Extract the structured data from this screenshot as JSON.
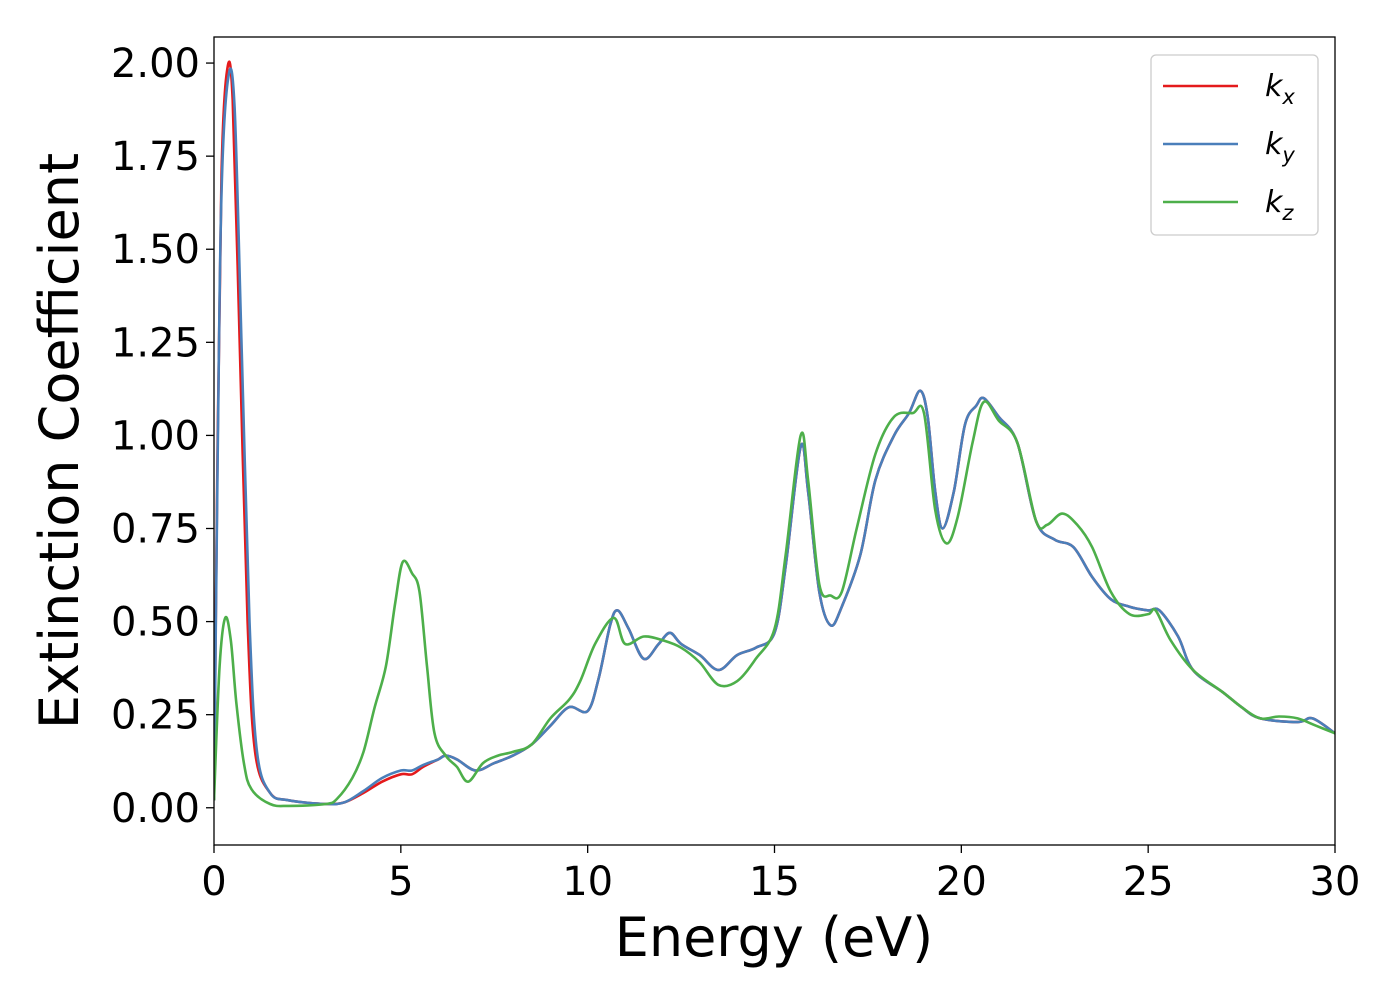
{
  "chart_data": {
    "type": "line",
    "title": "",
    "xlabel": "Energy (eV)",
    "ylabel": "Extinction Coefficient",
    "xlim": [
      0,
      30
    ],
    "ylim": [
      -0.1,
      2.07
    ],
    "x_ticks": [
      0,
      5,
      10,
      15,
      20,
      25,
      30
    ],
    "x_tick_labels": [
      "0",
      "5",
      "10",
      "15",
      "20",
      "25",
      "30"
    ],
    "y_ticks": [
      0.0,
      0.25,
      0.5,
      0.75,
      1.0,
      1.25,
      1.5,
      1.75,
      2.0
    ],
    "y_tick_labels": [
      "0.00",
      "0.25",
      "0.50",
      "0.75",
      "1.00",
      "1.25",
      "1.50",
      "1.75",
      "2.00"
    ],
    "grid": false,
    "legend_position": "top-right",
    "series": [
      {
        "name": "k_x",
        "label_base": "k",
        "label_sub": "x",
        "color": "#e41a1c",
        "points": [
          [
            0,
            0.02
          ],
          [
            0.1,
            1.0
          ],
          [
            0.2,
            1.7
          ],
          [
            0.35,
            1.98
          ],
          [
            0.5,
            1.9
          ],
          [
            0.7,
            1.2
          ],
          [
            0.9,
            0.5
          ],
          [
            1.1,
            0.15
          ],
          [
            1.5,
            0.04
          ],
          [
            2.0,
            0.02
          ],
          [
            3.0,
            0.01
          ],
          [
            3.5,
            0.015
          ],
          [
            4.0,
            0.04
          ],
          [
            4.5,
            0.07
          ],
          [
            5.0,
            0.09
          ],
          [
            5.3,
            0.09
          ],
          [
            5.6,
            0.11
          ],
          [
            6.0,
            0.13
          ],
          [
            6.2,
            0.14
          ],
          [
            6.5,
            0.13
          ],
          [
            7.0,
            0.1
          ],
          [
            7.5,
            0.12
          ],
          [
            8.0,
            0.14
          ],
          [
            8.5,
            0.17
          ],
          [
            9.0,
            0.22
          ],
          [
            9.5,
            0.27
          ],
          [
            10.0,
            0.26
          ],
          [
            10.3,
            0.35
          ],
          [
            10.6,
            0.49
          ],
          [
            10.8,
            0.53
          ],
          [
            11.1,
            0.48
          ],
          [
            11.5,
            0.4
          ],
          [
            11.9,
            0.44
          ],
          [
            12.2,
            0.47
          ],
          [
            12.5,
            0.44
          ],
          [
            13.0,
            0.41
          ],
          [
            13.5,
            0.37
          ],
          [
            14.0,
            0.41
          ],
          [
            14.5,
            0.43
          ],
          [
            15.0,
            0.47
          ],
          [
            15.3,
            0.65
          ],
          [
            15.7,
            0.97
          ],
          [
            15.9,
            0.85
          ],
          [
            16.2,
            0.58
          ],
          [
            16.5,
            0.49
          ],
          [
            16.8,
            0.54
          ],
          [
            17.3,
            0.68
          ],
          [
            17.7,
            0.88
          ],
          [
            18.2,
            1.0
          ],
          [
            18.6,
            1.06
          ],
          [
            18.9,
            1.12
          ],
          [
            19.1,
            1.05
          ],
          [
            19.3,
            0.85
          ],
          [
            19.5,
            0.75
          ],
          [
            19.8,
            0.85
          ],
          [
            20.1,
            1.03
          ],
          [
            20.4,
            1.08
          ],
          [
            20.6,
            1.1
          ],
          [
            21.0,
            1.05
          ],
          [
            21.5,
            0.98
          ],
          [
            22.0,
            0.77
          ],
          [
            22.5,
            0.72
          ],
          [
            23.0,
            0.7
          ],
          [
            23.5,
            0.62
          ],
          [
            24.0,
            0.56
          ],
          [
            24.5,
            0.54
          ],
          [
            25.0,
            0.53
          ],
          [
            25.3,
            0.53
          ],
          [
            25.8,
            0.46
          ],
          [
            26.2,
            0.37
          ],
          [
            27.0,
            0.31
          ],
          [
            27.5,
            0.27
          ],
          [
            28.0,
            0.24
          ],
          [
            29.0,
            0.23
          ],
          [
            29.4,
            0.24
          ],
          [
            30.0,
            0.2
          ]
        ]
      },
      {
        "name": "k_y",
        "label_base": "k",
        "label_sub": "y",
        "color": "#4a7fba",
        "points": [
          [
            0,
            0.02
          ],
          [
            0.1,
            0.95
          ],
          [
            0.2,
            1.65
          ],
          [
            0.38,
            1.96
          ],
          [
            0.55,
            1.88
          ],
          [
            0.75,
            1.2
          ],
          [
            0.95,
            0.5
          ],
          [
            1.15,
            0.15
          ],
          [
            1.5,
            0.04
          ],
          [
            2.0,
            0.02
          ],
          [
            3.0,
            0.01
          ],
          [
            3.5,
            0.015
          ],
          [
            4.0,
            0.045
          ],
          [
            4.5,
            0.08
          ],
          [
            5.0,
            0.1
          ],
          [
            5.3,
            0.1
          ],
          [
            5.6,
            0.115
          ],
          [
            6.0,
            0.13
          ],
          [
            6.2,
            0.14
          ],
          [
            6.5,
            0.13
          ],
          [
            7.0,
            0.1
          ],
          [
            7.5,
            0.12
          ],
          [
            8.0,
            0.14
          ],
          [
            8.5,
            0.17
          ],
          [
            9.0,
            0.22
          ],
          [
            9.5,
            0.27
          ],
          [
            10.0,
            0.26
          ],
          [
            10.3,
            0.35
          ],
          [
            10.6,
            0.49
          ],
          [
            10.8,
            0.53
          ],
          [
            11.1,
            0.48
          ],
          [
            11.5,
            0.4
          ],
          [
            11.9,
            0.44
          ],
          [
            12.2,
            0.47
          ],
          [
            12.5,
            0.44
          ],
          [
            13.0,
            0.41
          ],
          [
            13.5,
            0.37
          ],
          [
            14.0,
            0.41
          ],
          [
            14.5,
            0.43
          ],
          [
            15.0,
            0.47
          ],
          [
            15.3,
            0.65
          ],
          [
            15.7,
            0.97
          ],
          [
            15.9,
            0.85
          ],
          [
            16.2,
            0.58
          ],
          [
            16.5,
            0.49
          ],
          [
            16.8,
            0.54
          ],
          [
            17.3,
            0.68
          ],
          [
            17.7,
            0.88
          ],
          [
            18.2,
            1.0
          ],
          [
            18.6,
            1.06
          ],
          [
            18.9,
            1.12
          ],
          [
            19.1,
            1.05
          ],
          [
            19.3,
            0.85
          ],
          [
            19.5,
            0.75
          ],
          [
            19.8,
            0.85
          ],
          [
            20.1,
            1.03
          ],
          [
            20.4,
            1.08
          ],
          [
            20.6,
            1.1
          ],
          [
            21.0,
            1.05
          ],
          [
            21.5,
            0.98
          ],
          [
            22.0,
            0.77
          ],
          [
            22.5,
            0.72
          ],
          [
            23.0,
            0.7
          ],
          [
            23.5,
            0.62
          ],
          [
            24.0,
            0.56
          ],
          [
            24.5,
            0.54
          ],
          [
            25.0,
            0.53
          ],
          [
            25.3,
            0.53
          ],
          [
            25.8,
            0.46
          ],
          [
            26.2,
            0.37
          ],
          [
            27.0,
            0.31
          ],
          [
            27.5,
            0.27
          ],
          [
            28.0,
            0.24
          ],
          [
            29.0,
            0.23
          ],
          [
            29.4,
            0.24
          ],
          [
            30.0,
            0.2
          ]
        ]
      },
      {
        "name": "k_z",
        "label_base": "k",
        "label_sub": "z",
        "color": "#4daf4a",
        "points": [
          [
            0,
            0.02
          ],
          [
            0.15,
            0.38
          ],
          [
            0.3,
            0.51
          ],
          [
            0.45,
            0.45
          ],
          [
            0.6,
            0.28
          ],
          [
            0.8,
            0.12
          ],
          [
            1.0,
            0.05
          ],
          [
            1.5,
            0.01
          ],
          [
            2.0,
            0.005
          ],
          [
            3.0,
            0.01
          ],
          [
            3.3,
            0.025
          ],
          [
            3.7,
            0.08
          ],
          [
            4.0,
            0.15
          ],
          [
            4.3,
            0.27
          ],
          [
            4.6,
            0.38
          ],
          [
            4.85,
            0.55
          ],
          [
            5.05,
            0.66
          ],
          [
            5.3,
            0.63
          ],
          [
            5.5,
            0.58
          ],
          [
            5.7,
            0.38
          ],
          [
            5.9,
            0.2
          ],
          [
            6.2,
            0.14
          ],
          [
            6.5,
            0.11
          ],
          [
            6.8,
            0.07
          ],
          [
            7.2,
            0.12
          ],
          [
            7.6,
            0.14
          ],
          [
            8.0,
            0.15
          ],
          [
            8.5,
            0.17
          ],
          [
            9.0,
            0.24
          ],
          [
            9.5,
            0.29
          ],
          [
            9.8,
            0.34
          ],
          [
            10.2,
            0.44
          ],
          [
            10.7,
            0.51
          ],
          [
            11.0,
            0.44
          ],
          [
            11.5,
            0.46
          ],
          [
            12.0,
            0.45
          ],
          [
            12.5,
            0.43
          ],
          [
            13.0,
            0.39
          ],
          [
            13.5,
            0.33
          ],
          [
            14.0,
            0.34
          ],
          [
            14.5,
            0.4
          ],
          [
            15.0,
            0.48
          ],
          [
            15.3,
            0.68
          ],
          [
            15.7,
            1.0
          ],
          [
            15.9,
            0.88
          ],
          [
            16.2,
            0.6
          ],
          [
            16.5,
            0.57
          ],
          [
            16.8,
            0.58
          ],
          [
            17.2,
            0.75
          ],
          [
            17.7,
            0.95
          ],
          [
            18.2,
            1.05
          ],
          [
            18.7,
            1.06
          ],
          [
            19.0,
            1.06
          ],
          [
            19.3,
            0.8
          ],
          [
            19.6,
            0.71
          ],
          [
            19.9,
            0.78
          ],
          [
            20.3,
            0.98
          ],
          [
            20.6,
            1.09
          ],
          [
            21.0,
            1.04
          ],
          [
            21.5,
            0.98
          ],
          [
            22.0,
            0.77
          ],
          [
            22.3,
            0.76
          ],
          [
            22.7,
            0.79
          ],
          [
            23.1,
            0.76
          ],
          [
            23.5,
            0.7
          ],
          [
            24.0,
            0.58
          ],
          [
            24.5,
            0.52
          ],
          [
            25.0,
            0.52
          ],
          [
            25.2,
            0.53
          ],
          [
            25.6,
            0.45
          ],
          [
            26.2,
            0.37
          ],
          [
            27.0,
            0.31
          ],
          [
            27.5,
            0.27
          ],
          [
            28.0,
            0.24
          ],
          [
            28.5,
            0.245
          ],
          [
            29.0,
            0.24
          ],
          [
            29.5,
            0.22
          ],
          [
            30.0,
            0.2
          ]
        ]
      }
    ]
  }
}
